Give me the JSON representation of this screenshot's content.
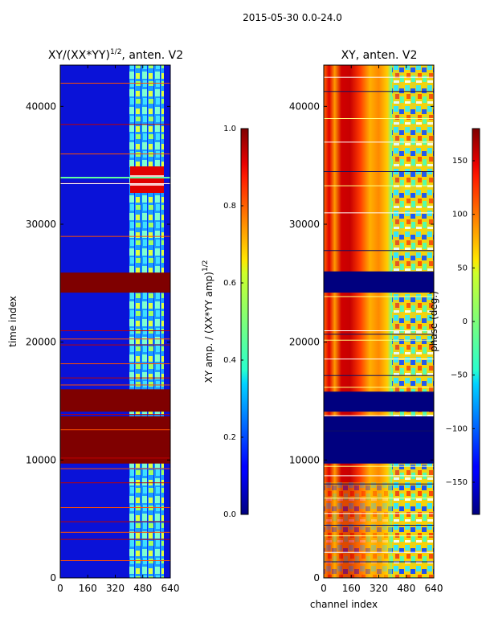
{
  "figure": {
    "suptitle": "2015-05-30 0.0-24.0"
  },
  "chart_data": [
    {
      "type": "heatmap",
      "title": "XY/(XX*YY)^1/2, anten. V2",
      "title_base": "XY/(XX*YY)",
      "title_exponent": "1/2",
      "title_suffix": ", anten. V2",
      "xlabel": "",
      "ylabel": "time index",
      "xlim": [
        0,
        640
      ],
      "ylim": [
        0,
        43500
      ],
      "xticks": [
        0,
        160,
        320,
        480,
        640
      ],
      "yticks": [
        0,
        10000,
        20000,
        30000,
        40000
      ],
      "colormap": "jet",
      "colorbar": {
        "label_base": "XY amp. / (XX*YY amp)",
        "label_exponent": "1/2",
        "range": [
          0.0,
          1.0
        ],
        "ticks": [
          "0.0",
          "0.2",
          "0.4",
          "0.6",
          "0.8",
          "1.0"
        ]
      },
      "bands": [
        {
          "y0": 24200,
          "y1": 25900,
          "value": 1.0
        },
        {
          "y0": 14100,
          "y1": 16000,
          "value": 1.0
        },
        {
          "y0": 9700,
          "y1": 13700,
          "value": 1.0
        }
      ],
      "active_channels": [
        400,
        600
      ]
    },
    {
      "type": "heatmap",
      "title": "XY, anten. V2",
      "xlabel": "channel index",
      "ylabel": "",
      "xlim": [
        0,
        640
      ],
      "ylim": [
        0,
        43500
      ],
      "xticks": [
        0,
        160,
        320,
        480,
        640
      ],
      "yticks": [
        0,
        10000,
        20000,
        30000,
        40000
      ],
      "colormap": "jet",
      "colorbar": {
        "label": "phase (deg.)",
        "range": [
          -180,
          180
        ],
        "ticks": [
          "150",
          "100",
          "50",
          "0",
          "−50",
          "−100",
          "−150"
        ],
        "tick_values": [
          150,
          100,
          50,
          0,
          -50,
          -100,
          -150
        ]
      },
      "bands": [
        {
          "y0": 24200,
          "y1": 26000,
          "value": -180
        },
        {
          "y0": 14100,
          "y1": 15800,
          "value": -180
        },
        {
          "y0": 9700,
          "y1": 13700,
          "value": -180
        }
      ]
    }
  ]
}
